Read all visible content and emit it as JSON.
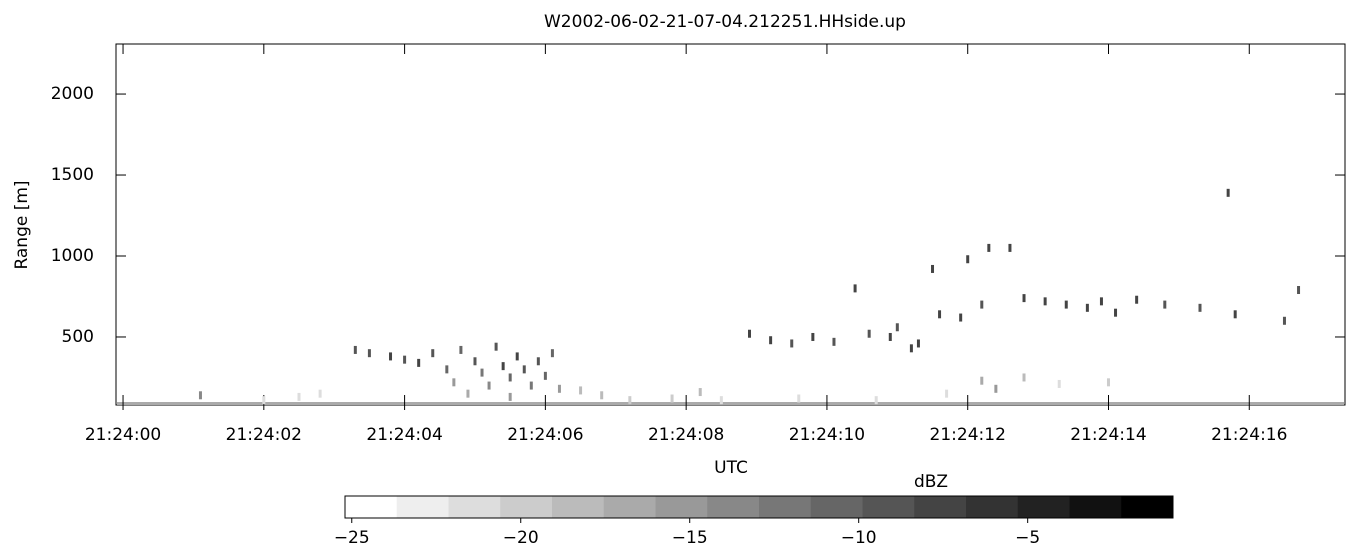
{
  "chart_data": {
    "type": "radar-scatter",
    "title": "W2002-06-02-21-07-04.212251.HHside.up",
    "x_label": "UTC",
    "y_label": "Range [m]",
    "colorbar_label": "dBZ",
    "xlim": [
      -0.1,
      17.36
    ],
    "xticks": [
      {
        "value": 0,
        "label": "21:24:00"
      },
      {
        "value": 2,
        "label": "21:24:02"
      },
      {
        "value": 4,
        "label": "21:24:04"
      },
      {
        "value": 6,
        "label": "21:24:06"
      },
      {
        "value": 8,
        "label": "21:24:08"
      },
      {
        "value": 10,
        "label": "21:24:10"
      },
      {
        "value": 12,
        "label": "21:24:12"
      },
      {
        "value": 14,
        "label": "21:24:14"
      },
      {
        "value": 16,
        "label": "21:24:16"
      }
    ],
    "ylim": [
      80,
      2309
    ],
    "yticks": [
      500,
      1000,
      1500,
      2000
    ],
    "clim": [
      -25.2,
      -0.7
    ],
    "cticks": [
      {
        "value": -25,
        "label": "−25"
      },
      {
        "value": -20,
        "label": "−20"
      },
      {
        "value": -15,
        "label": "−15"
      },
      {
        "value": -10,
        "label": "−10"
      },
      {
        "value": -5,
        "label": "−5"
      }
    ],
    "colors": [
      "#ffffff",
      "#eeeeee",
      "#dddddd",
      "#cccccc",
      "#bbbbbb",
      "#aaaaaa",
      "#999999",
      "#888888",
      "#777777",
      "#666666",
      "#555555",
      "#444444",
      "#333333",
      "#222222",
      "#111111",
      "#000000"
    ],
    "x": [
      1.1,
      2.0,
      2.5,
      2.8,
      3.3,
      3.5,
      3.8,
      4.0,
      4.2,
      4.4,
      4.6,
      4.7,
      4.8,
      5.0,
      5.1,
      5.2,
      5.3,
      5.4,
      5.5,
      5.6,
      5.7,
      5.8,
      5.9,
      6.0,
      6.1,
      6.2,
      4.9,
      5.5,
      6.5,
      6.8,
      7.2,
      7.8,
      8.2,
      8.5,
      8.9,
      9.2,
      9.5,
      9.8,
      10.1,
      10.4,
      10.6,
      10.9,
      11.0,
      11.2,
      11.3,
      11.5,
      11.6,
      11.9,
      12.0,
      12.2,
      12.3,
      12.6,
      12.8,
      13.1,
      13.4,
      13.7,
      13.9,
      14.1,
      14.4,
      14.8,
      15.3,
      15.7,
      15.8,
      16.5,
      16.7,
      12.2,
      12.4,
      12.8,
      13.3,
      14.0,
      11.7,
      9.6,
      10.7
    ],
    "y": [
      140,
      110,
      130,
      150,
      420,
      400,
      380,
      360,
      340,
      400,
      300,
      220,
      420,
      350,
      280,
      200,
      440,
      320,
      250,
      380,
      300,
      200,
      350,
      260,
      400,
      180,
      150,
      130,
      170,
      140,
      110,
      120,
      160,
      110,
      520,
      480,
      460,
      500,
      470,
      800,
      520,
      500,
      560,
      430,
      460,
      920,
      640,
      620,
      980,
      700,
      1050,
      1050,
      740,
      720,
      700,
      680,
      720,
      650,
      730,
      700,
      680,
      1390,
      640,
      600,
      790,
      230,
      180,
      250,
      210,
      220,
      150,
      120,
      110
    ],
    "values": [
      -14,
      -21,
      -22,
      -21,
      -9,
      -9,
      -8,
      -9,
      -8,
      -9,
      -11,
      -15,
      -10,
      -9,
      -12,
      -14,
      -9,
      -8,
      -10,
      -8,
      -9,
      -12,
      -9,
      -11,
      -10,
      -15,
      -17,
      -16,
      -18,
      -19,
      -20,
      -20,
      -19,
      -21,
      -8,
      -8,
      -9,
      -8,
      -9,
      -8,
      -9,
      -8,
      -9,
      -8,
      -8,
      -8,
      -8,
      -8,
      -7,
      -9,
      -8,
      -8,
      -8,
      -8,
      -8,
      -7,
      -8,
      -8,
      -8,
      -9,
      -9,
      -8,
      -8,
      -9,
      -9,
      -17,
      -16,
      -19,
      -21,
      -20,
      -21,
      -22,
      -22
    ]
  }
}
